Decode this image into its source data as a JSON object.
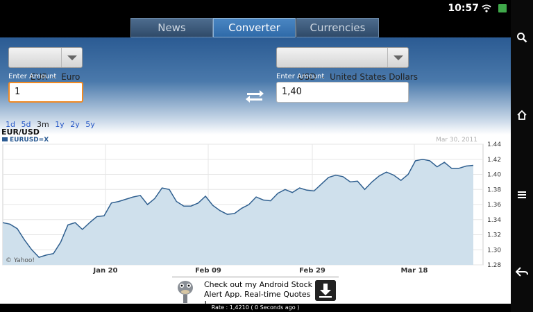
{
  "status": {
    "time": "10:57"
  },
  "tabs": [
    {
      "label": "News"
    },
    {
      "label": "Converter"
    },
    {
      "label": "Currencies"
    }
  ],
  "from": {
    "currency": "EUR  -  Euro",
    "amount_label": "Enter Amount",
    "amount": "1"
  },
  "to": {
    "currency": "USD  -  United States Dollars",
    "amount_label": "Enter Amount",
    "amount": "1,40"
  },
  "periods": [
    "1d",
    "5d",
    "3m",
    "1y",
    "2y",
    "5y"
  ],
  "active_period": "3m",
  "chart_data": {
    "type": "area",
    "title": "EUR/USD",
    "series_label": "EURUSD=X",
    "date_label": "Mar 30, 2011",
    "watermark": "© Yahoo!",
    "x_ticks": [
      "Jan 20",
      "Feb 09",
      "Feb 29",
      "Mar 18"
    ],
    "y_ticks": [
      "1.44",
      "1.42",
      "1.40",
      "1.38",
      "1.36",
      "1.34",
      "1.32",
      "1.30",
      "1.28"
    ],
    "ylim": [
      1.28,
      1.44
    ],
    "grid": true,
    "series": [
      {
        "values": [
          1.336,
          1.334,
          1.328,
          1.313,
          1.3,
          1.29,
          1.293,
          1.295,
          1.31,
          1.333,
          1.336,
          1.327,
          1.336,
          1.344,
          1.345,
          1.362,
          1.364,
          1.367,
          1.37,
          1.372,
          1.36,
          1.368,
          1.382,
          1.38,
          1.364,
          1.358,
          1.358,
          1.362,
          1.371,
          1.359,
          1.352,
          1.347,
          1.348,
          1.355,
          1.36,
          1.37,
          1.366,
          1.365,
          1.375,
          1.38,
          1.376,
          1.382,
          1.379,
          1.378,
          1.387,
          1.396,
          1.399,
          1.397,
          1.39,
          1.391,
          1.38,
          1.39,
          1.398,
          1.403,
          1.399,
          1.392,
          1.4,
          1.418,
          1.42,
          1.418,
          1.41,
          1.416,
          1.408,
          1.408,
          1.411,
          1.412
        ]
      }
    ]
  },
  "ad": {
    "text": "Check out my Android Stock Alert App. Real-time Quotes !"
  },
  "rate_text": "Rate : 1,4210 ( 0 Seconds ago )"
}
